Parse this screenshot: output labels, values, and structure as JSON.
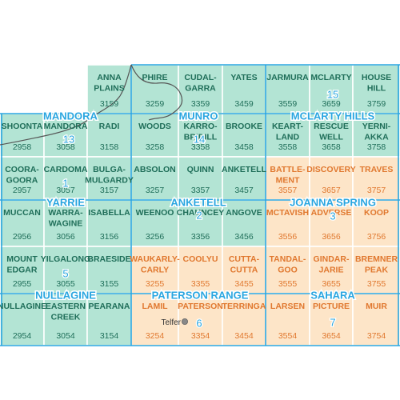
{
  "colors": {
    "sheet_green": "#b3e4d4",
    "sheet_orange": "#fde5c8",
    "grid_line": "#ffffff",
    "label_green": "#1f6e59",
    "label_orange": "#e0782f",
    "region_blue": "#2aa6e0",
    "coast_line": "#555555",
    "sea_white": "#ffffff"
  },
  "region_labels": [
    {
      "id": "mandora",
      "name": "MANDORA",
      "number": "13"
    },
    {
      "id": "munro",
      "name": "MUNRO",
      "number": "14"
    },
    {
      "id": "mclarty-hills",
      "name": "MCLARTY HILLS",
      "number": "15"
    },
    {
      "id": "yarrie",
      "name": "YARRIE",
      "number": "1"
    },
    {
      "id": "anketell",
      "name": "ANKETELL",
      "number": "2"
    },
    {
      "id": "joanna-spring",
      "name": "JOANNA SPRING",
      "number": "3"
    },
    {
      "id": "nullagine",
      "name": "NULLAGINE",
      "number": "5"
    },
    {
      "id": "paterson-range",
      "name": "PATERSON RANGE",
      "number": "6"
    },
    {
      "id": "sahara",
      "name": "SAHARA",
      "number": "7"
    }
  ],
  "town": {
    "name": "Telfer"
  },
  "sheets": [
    {
      "lines": [
        "ANNA",
        "PLAINS"
      ],
      "number": "3159",
      "color": "green"
    },
    {
      "lines": [
        "PHIRE"
      ],
      "number": "3259",
      "color": "green"
    },
    {
      "lines": [
        "CUDAL-",
        "GARRA"
      ],
      "number": "3359",
      "color": "green"
    },
    {
      "lines": [
        "YATES"
      ],
      "number": "3459",
      "color": "green"
    },
    {
      "lines": [
        "JARMURA"
      ],
      "number": "3559",
      "color": "green"
    },
    {
      "lines": [
        "MCLARTY"
      ],
      "number": "3659",
      "color": "green"
    },
    {
      "lines": [
        "HOUSE",
        "HILL"
      ],
      "number": "3759",
      "color": "green"
    },
    {
      "lines": [
        "SHOONTA"
      ],
      "number": "2958",
      "color": "green"
    },
    {
      "lines": [
        "MANDORA"
      ],
      "number": "3058",
      "color": "green"
    },
    {
      "lines": [
        "RADI"
      ],
      "number": "3158",
      "color": "green"
    },
    {
      "lines": [
        "WOODS"
      ],
      "number": "3258",
      "color": "green"
    },
    {
      "lines": [
        "KARRO-",
        "BRIDILL"
      ],
      "number": "3358",
      "color": "green"
    },
    {
      "lines": [
        "BROOKE"
      ],
      "number": "3458",
      "color": "green"
    },
    {
      "lines": [
        "KEART-",
        "LAND"
      ],
      "number": "3558",
      "color": "green"
    },
    {
      "lines": [
        "RESCUE",
        "WELL"
      ],
      "number": "3658",
      "color": "green"
    },
    {
      "lines": [
        "YERNI-",
        "AKKA"
      ],
      "number": "3758",
      "color": "green"
    },
    {
      "lines": [
        "COORA-",
        "GOORA"
      ],
      "number": "2957",
      "color": "green"
    },
    {
      "lines": [
        "CARDOMA"
      ],
      "number": "3057",
      "color": "green"
    },
    {
      "lines": [
        "BULGA-",
        "MULGARDY"
      ],
      "number": "3157",
      "color": "green"
    },
    {
      "lines": [
        "ABSOLON"
      ],
      "number": "3257",
      "color": "green"
    },
    {
      "lines": [
        "QUINN"
      ],
      "number": "3357",
      "color": "green"
    },
    {
      "lines": [
        "ANKETELL"
      ],
      "number": "3457",
      "color": "green"
    },
    {
      "lines": [
        "BATTLE-",
        "MENT"
      ],
      "number": "3557",
      "color": "orange"
    },
    {
      "lines": [
        "DISCOVERY"
      ],
      "number": "3657",
      "color": "orange"
    },
    {
      "lines": [
        "TRAVES"
      ],
      "number": "3757",
      "color": "orange"
    },
    {
      "lines": [
        "MUCCAN"
      ],
      "number": "2956",
      "color": "green"
    },
    {
      "lines": [
        "WARRA-",
        "WAGINE"
      ],
      "number": "3056",
      "color": "green"
    },
    {
      "lines": [
        "ISABELLA"
      ],
      "number": "3156",
      "color": "green"
    },
    {
      "lines": [
        "WEENOO"
      ],
      "number": "3256",
      "color": "green"
    },
    {
      "lines": [
        "CHAUNCEY"
      ],
      "number": "3356",
      "color": "green"
    },
    {
      "lines": [
        "ANGOVE"
      ],
      "number": "3456",
      "color": "green"
    },
    {
      "lines": [
        "MCTAVISH"
      ],
      "number": "3556",
      "color": "orange"
    },
    {
      "lines": [
        "ADVERSE"
      ],
      "number": "3656",
      "color": "orange"
    },
    {
      "lines": [
        "KOOP"
      ],
      "number": "3756",
      "color": "orange"
    },
    {
      "lines": [
        "MOUNT",
        "EDGAR"
      ],
      "number": "2955",
      "color": "green"
    },
    {
      "lines": [
        "YILGALONG"
      ],
      "number": "3055",
      "color": "green"
    },
    {
      "lines": [
        "BRAESIDE"
      ],
      "number": "3155",
      "color": "green"
    },
    {
      "lines": [
        "WAUKARLY-",
        "CARLY"
      ],
      "number": "3255",
      "color": "orange"
    },
    {
      "lines": [
        "COOLYU"
      ],
      "number": "3355",
      "color": "orange"
    },
    {
      "lines": [
        "CUTTA-",
        "CUTTA"
      ],
      "number": "3455",
      "color": "orange"
    },
    {
      "lines": [
        "TANDAL-",
        "GOO"
      ],
      "number": "3555",
      "color": "orange"
    },
    {
      "lines": [
        "GINDAR-",
        "JARIE"
      ],
      "number": "3655",
      "color": "orange"
    },
    {
      "lines": [
        "BREMNER",
        "PEAK"
      ],
      "number": "3755",
      "color": "orange"
    },
    {
      "lines": [
        "NULLAGINE"
      ],
      "number": "2954",
      "color": "green"
    },
    {
      "lines": [
        "EASTERN",
        "CREEK"
      ],
      "number": "3054",
      "color": "green"
    },
    {
      "lines": [
        "PEARANA"
      ],
      "number": "3154",
      "color": "green"
    },
    {
      "lines": [
        "LAMIL"
      ],
      "number": "3254",
      "color": "orange"
    },
    {
      "lines": [
        "PATERSON"
      ],
      "number": "3354",
      "color": "orange"
    },
    {
      "lines": [
        "TERRINGA"
      ],
      "number": "3454",
      "color": "orange"
    },
    {
      "lines": [
        "LARSEN"
      ],
      "number": "3554",
      "color": "orange"
    },
    {
      "lines": [
        "PICTURE"
      ],
      "number": "3654",
      "color": "orange"
    },
    {
      "lines": [
        "MUIR"
      ],
      "number": "3754",
      "color": "orange"
    }
  ]
}
